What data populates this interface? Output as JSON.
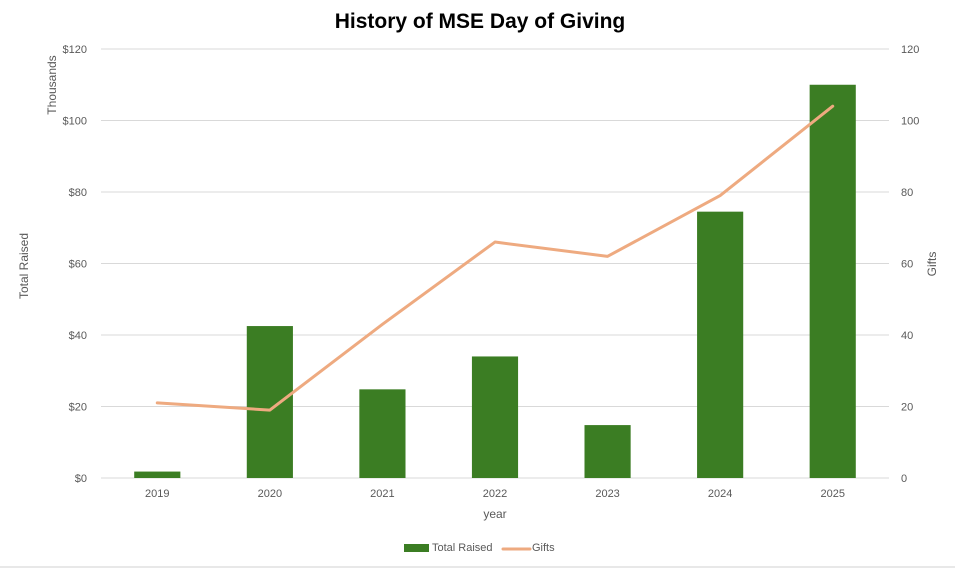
{
  "chart_data": {
    "type": "bar",
    "title": "History of MSE Day of Giving",
    "xlabel": "year",
    "ylabel": "Total Raised",
    "ylabel_units": "Thousands",
    "y2label": "Gifts",
    "categories": [
      "2019",
      "2020",
      "2021",
      "2022",
      "2023",
      "2024",
      "2025"
    ],
    "series": [
      {
        "name": "Total Raised",
        "type": "bar",
        "axis": "left",
        "color": "#3b7d23",
        "values": [
          1.8,
          42.5,
          24.8,
          34.0,
          14.8,
          74.5,
          110.0
        ]
      },
      {
        "name": "Gifts",
        "type": "line",
        "axis": "right",
        "color": "#eeaa80",
        "values": [
          21,
          19,
          43,
          66,
          62,
          79,
          104
        ]
      }
    ],
    "ylim": [
      0,
      120
    ],
    "y2lim": [
      0,
      120
    ],
    "yticks": [
      "$0",
      "$20",
      "$40",
      "$60",
      "$80",
      "$100",
      "$120"
    ],
    "y2ticks": [
      "0",
      "20",
      "40",
      "60",
      "80",
      "100",
      "120"
    ],
    "grid": true,
    "legend_position": "bottom"
  }
}
